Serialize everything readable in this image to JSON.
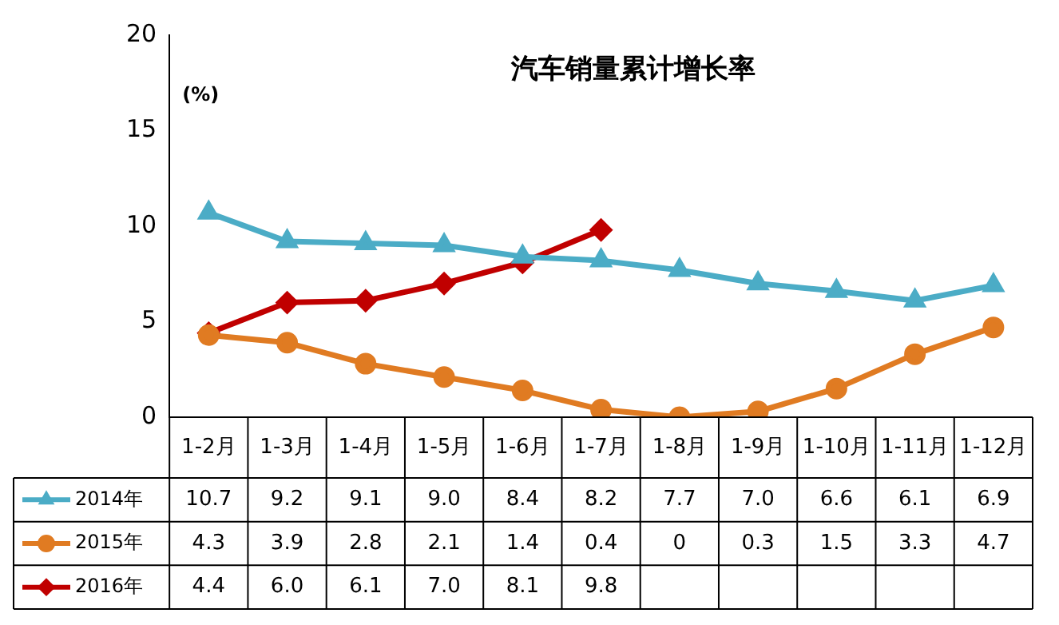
{
  "chart_data": {
    "type": "line",
    "title": "汽车销量累计增长率",
    "annotations": [
      "(%)"
    ],
    "categories": [
      "1-2月",
      "1-3月",
      "1-4月",
      "1-5月",
      "1-6月",
      "1-7月",
      "1-8月",
      "1-9月",
      "1-10月",
      "1-11月",
      "1-12月"
    ],
    "series": [
      {
        "name": "2014年",
        "color": "#4bacc6",
        "marker": "triangle",
        "values": [
          10.7,
          9.2,
          9.1,
          9.0,
          8.4,
          8.2,
          7.7,
          7.0,
          6.6,
          6.1,
          6.9
        ],
        "value_labels": [
          "10.7",
          "9.2",
          "9.1",
          "9.0",
          "8.4",
          "8.2",
          "7.7",
          "7.0",
          "6.6",
          "6.1",
          "6.9"
        ]
      },
      {
        "name": "2015年",
        "color": "#e07b22",
        "marker": "circle",
        "values": [
          4.3,
          3.9,
          2.8,
          2.1,
          1.4,
          0.4,
          0,
          0.3,
          1.5,
          3.3,
          4.7
        ],
        "value_labels": [
          "4.3",
          "3.9",
          "2.8",
          "2.1",
          "1.4",
          "0.4",
          "0",
          "0.3",
          "1.5",
          "3.3",
          "4.7"
        ]
      },
      {
        "name": "2016年",
        "color": "#c00000",
        "marker": "diamond",
        "values": [
          4.4,
          6.0,
          6.1,
          7.0,
          8.1,
          9.8,
          null,
          null,
          null,
          null,
          null
        ],
        "value_labels": [
          "4.4",
          "6.0",
          "6.1",
          "7.0",
          "8.1",
          "9.8",
          null,
          null,
          null,
          null,
          null
        ]
      }
    ],
    "ylim": [
      0,
      20
    ],
    "yticks": [
      0,
      5,
      10,
      15,
      20
    ],
    "grid": false,
    "legend": "bottom left",
    "line_style": "solid"
  }
}
